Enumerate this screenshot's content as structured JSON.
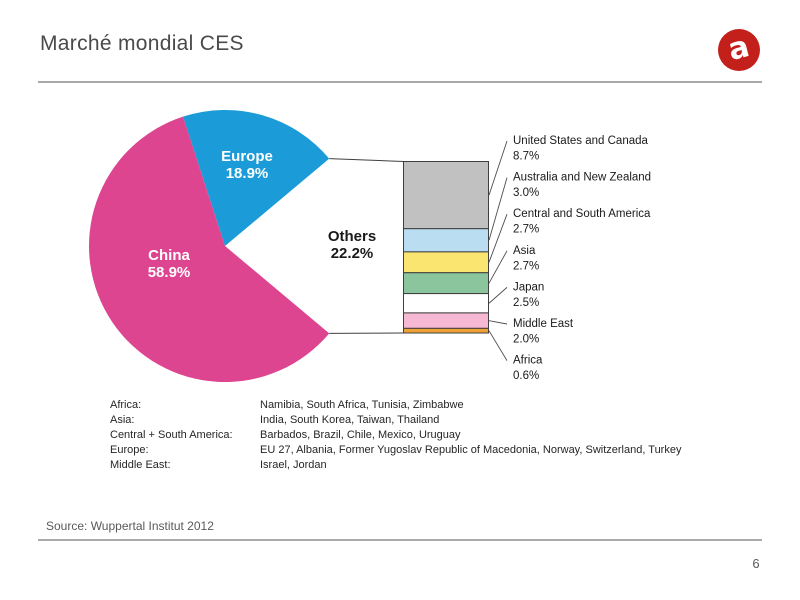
{
  "slide": {
    "title": "Marché mondial CES",
    "source": "Source: Wuppertal Institut 2012",
    "page_number": "6",
    "logo_letter": "a",
    "logo_color": "#c4201b"
  },
  "chart_data": {
    "type": "pie",
    "subtype": "bar-of-pie",
    "title": "Marché mondial CES",
    "legend_position": "none",
    "pie_series": [
      {
        "label": "China",
        "value": 58.9,
        "pct_label": "58.9%",
        "color": "#de4590",
        "label_color": "#ffffff"
      },
      {
        "label": "Europe",
        "value": 18.9,
        "pct_label": "18.9%",
        "color": "#1b9cd8",
        "label_color": "#ffffff"
      },
      {
        "label": "Others",
        "value": 22.2,
        "pct_label": "22.2%",
        "color": "#ffffff",
        "label_color": "#1a1a1a"
      }
    ],
    "others_breakdown": [
      {
        "label": "United States and Canada",
        "value": 8.7,
        "pct_label": "8.7%",
        "color": "#c1c1c1"
      },
      {
        "label": "Australia and New Zealand",
        "value": 3.0,
        "pct_label": "3.0%",
        "color": "#bbddf2"
      },
      {
        "label": "Central and South America",
        "value": 2.7,
        "pct_label": "2.7%",
        "color": "#fae570"
      },
      {
        "label": "Asia",
        "value": 2.7,
        "pct_label": "2.7%",
        "color": "#8ac59e"
      },
      {
        "label": "Japan",
        "value": 2.5,
        "pct_label": "2.5%",
        "color": "#ffffff"
      },
      {
        "label": "Middle East",
        "value": 2.0,
        "pct_label": "2.0%",
        "color": "#f6b8d2"
      },
      {
        "label": "Africa",
        "value": 0.6,
        "pct_label": "0.6%",
        "color": "#f0a136"
      }
    ],
    "outline_color": "#3f3f3f",
    "leader_color": "#4d4d4d"
  },
  "breakdown_legend": {
    "rows": [
      {
        "region": "Africa:",
        "countries": "Namibia, South Africa, Tunisia, Zimbabwe"
      },
      {
        "region": "Asia:",
        "countries": "India, South Korea, Taiwan, Thailand"
      },
      {
        "region": "Central + South America:",
        "countries": "Barbados, Brazil, Chile, Mexico, Uruguay"
      },
      {
        "region": "Europe:",
        "countries": "EU 27, Albania, Former Yugoslav Republic of Macedonia, Norway, Switzerland, Turkey"
      },
      {
        "region": "Middle East:",
        "countries": "Israel, Jordan"
      }
    ]
  }
}
